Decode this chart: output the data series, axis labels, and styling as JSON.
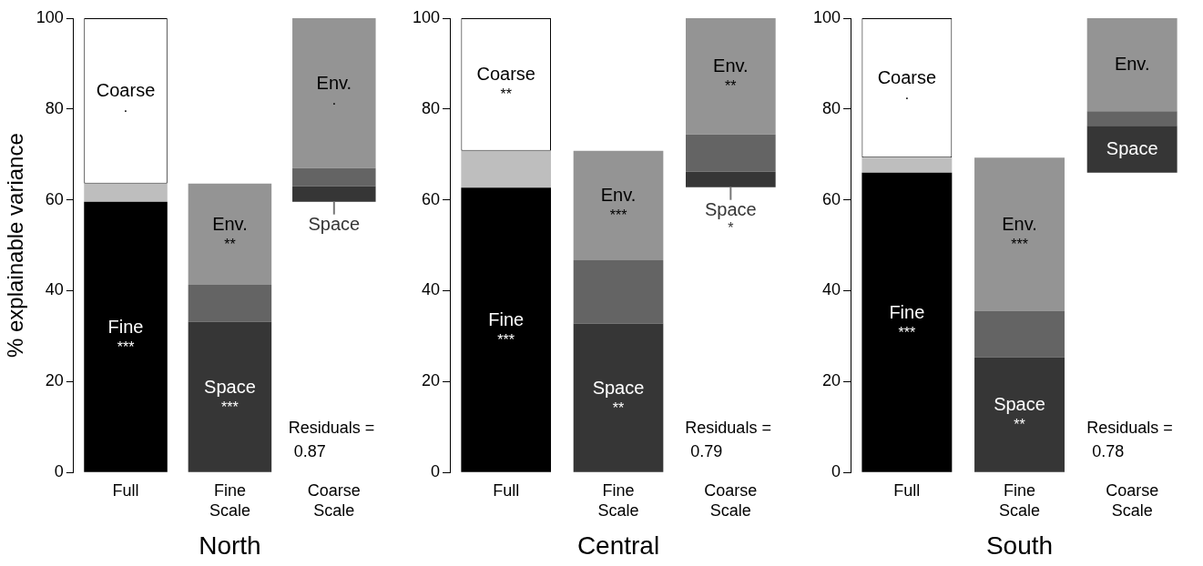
{
  "chart_data": [
    {
      "type": "bar",
      "xlabel": "North",
      "ylabel": "% explainable variance",
      "categories": [
        "Full",
        "Fine Scale",
        "Coarse Scale"
      ],
      "ylim": [
        0,
        100
      ],
      "yticks": [
        0,
        20,
        40,
        60,
        80,
        100
      ],
      "series": [
        {
          "name": "Fine",
          "color": "#000000",
          "base": [
            0,
            null,
            null
          ],
          "values": [
            59.6,
            null,
            null
          ],
          "value_labels": [
            "***",
            null,
            null
          ]
        },
        {
          "color": "#bebebe",
          "base": [
            59.6,
            null,
            null
          ],
          "values": [
            4.0,
            null,
            null
          ]
        },
        {
          "name": "Coarse",
          "color": "#ffffff",
          "base": [
            63.6,
            null,
            null
          ],
          "values": [
            36.4,
            null,
            null
          ],
          "value_labels": [
            "·",
            null,
            null
          ]
        },
        {
          "name": "Space",
          "color": "#363636",
          "base": [
            null,
            0,
            59.6
          ],
          "values": [
            null,
            33.2,
            3.4
          ],
          "value_labels": [
            null,
            "***",
            null
          ]
        },
        {
          "color": "#646464",
          "base": [
            null,
            33.2,
            63.0
          ],
          "values": [
            null,
            8.1,
            4.0
          ]
        },
        {
          "name": "Env.",
          "color": "#949494",
          "base": [
            null,
            41.3,
            67.0
          ],
          "values": [
            null,
            22.3,
            33.0
          ],
          "value_labels": [
            null,
            "**",
            "·"
          ]
        }
      ],
      "annotations": [
        "Residuals = 0.87"
      ]
    },
    {
      "type": "bar",
      "xlabel": "Central",
      "categories": [
        "Full",
        "Fine Scale",
        "Coarse Scale"
      ],
      "ylim": [
        0,
        100
      ],
      "yticks": [
        0,
        20,
        40,
        60,
        80,
        100
      ],
      "series": [
        {
          "name": "Fine",
          "color": "#000000",
          "base": [
            0,
            null,
            null
          ],
          "values": [
            62.7,
            null,
            null
          ],
          "value_labels": [
            "***",
            null,
            null
          ]
        },
        {
          "color": "#bebebe",
          "base": [
            62.7,
            null,
            null
          ],
          "values": [
            8.1,
            null,
            null
          ]
        },
        {
          "name": "Coarse",
          "color": "#ffffff",
          "base": [
            70.8,
            null,
            null
          ],
          "values": [
            29.2,
            null,
            null
          ],
          "value_labels": [
            "**",
            null,
            null
          ]
        },
        {
          "name": "Space",
          "color": "#363636",
          "base": [
            null,
            0,
            62.8
          ],
          "values": [
            null,
            32.8,
            3.4
          ],
          "value_labels": [
            null,
            "**",
            "*"
          ]
        },
        {
          "color": "#646464",
          "base": [
            null,
            32.8,
            66.2
          ],
          "values": [
            null,
            13.9,
            8.2
          ]
        },
        {
          "name": "Env.",
          "color": "#949494",
          "base": [
            null,
            46.7,
            74.4
          ],
          "values": [
            null,
            24.1,
            25.6
          ],
          "value_labels": [
            null,
            "***",
            "**"
          ]
        }
      ],
      "annotations": [
        "Residuals = 0.79"
      ]
    },
    {
      "type": "bar",
      "xlabel": "South",
      "categories": [
        "Full",
        "Fine Scale",
        "Coarse Scale"
      ],
      "ylim": [
        0,
        100
      ],
      "yticks": [
        0,
        20,
        40,
        60,
        80,
        100
      ],
      "series": [
        {
          "name": "Fine",
          "color": "#000000",
          "base": [
            0,
            null,
            null
          ],
          "values": [
            66.0,
            null,
            null
          ],
          "value_labels": [
            "***",
            null,
            null
          ]
        },
        {
          "color": "#bebebe",
          "base": [
            66.0,
            null,
            null
          ],
          "values": [
            3.3,
            null,
            null
          ]
        },
        {
          "name": "Coarse",
          "color": "#ffffff",
          "base": [
            69.3,
            null,
            null
          ],
          "values": [
            30.7,
            null,
            null
          ],
          "value_labels": [
            "·",
            null,
            null
          ]
        },
        {
          "name": "Space",
          "color": "#363636",
          "base": [
            null,
            0,
            66.0
          ],
          "values": [
            null,
            25.4,
            10.3
          ],
          "value_labels": [
            null,
            "**",
            null
          ]
        },
        {
          "color": "#646464",
          "base": [
            null,
            25.4,
            76.3
          ],
          "values": [
            null,
            10.2,
            3.2
          ]
        },
        {
          "name": "Env.",
          "color": "#949494",
          "base": [
            null,
            35.6,
            79.5
          ],
          "values": [
            null,
            33.7,
            20.5
          ],
          "value_labels": [
            null,
            "***",
            null
          ]
        }
      ],
      "annotations": [
        "Residuals = 0.78"
      ]
    }
  ]
}
